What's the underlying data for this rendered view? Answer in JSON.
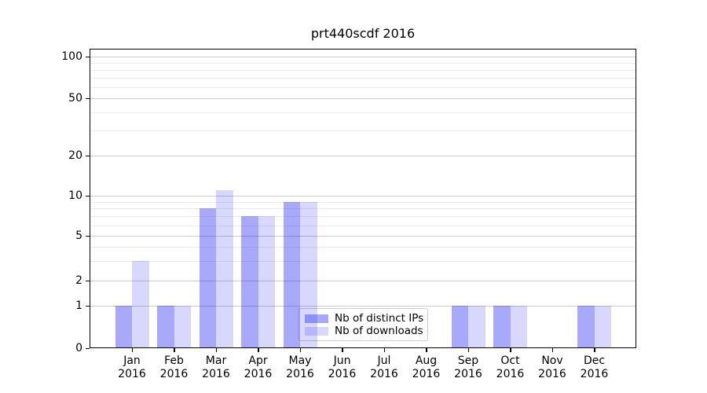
{
  "figure": {
    "background": "#ffffff",
    "title": "prt440scdf 2016"
  },
  "chart_data": {
    "type": "bar",
    "title": "prt440scdf 2016",
    "categories": [
      "Jan",
      "Feb",
      "Mar",
      "Apr",
      "May",
      "Jun",
      "Jul",
      "Aug",
      "Sep",
      "Oct",
      "Nov",
      "Dec"
    ],
    "category_sublabel": "2016",
    "series": [
      {
        "name": "Nb of distinct IPs",
        "color": "rgba(10,10,245,0.35)",
        "values": [
          1,
          1,
          8,
          7,
          9,
          0,
          0,
          0,
          1,
          1,
          0,
          1
        ]
      },
      {
        "name": "Nb of downloads",
        "color": "rgba(10,10,245,0.16)",
        "values": [
          3,
          1,
          11,
          7,
          9,
          0,
          0,
          0,
          1,
          1,
          0,
          1
        ]
      }
    ],
    "xlabel": "",
    "ylabel": "",
    "yticks": [
      0,
      1,
      2,
      5,
      10,
      20,
      50,
      100
    ],
    "ylim": [
      0,
      114
    ],
    "yscale": "symlog-like (linear 0-1, log above 1)",
    "grid": "horizontal, major and minor (log minors)",
    "legend_position": "lower center"
  },
  "colors": {
    "bar_distinct_ips_rendered": "#a6a6fa",
    "bar_downloads_rendered": "#d9d9fc",
    "grid_major": "#cbcbcb",
    "grid_minor": "#ebebeb",
    "axis_spine": "#000000",
    "legend_border": "#cccccc",
    "legend_background": "rgba(255,255,255,0.8)",
    "text": "#000000"
  }
}
